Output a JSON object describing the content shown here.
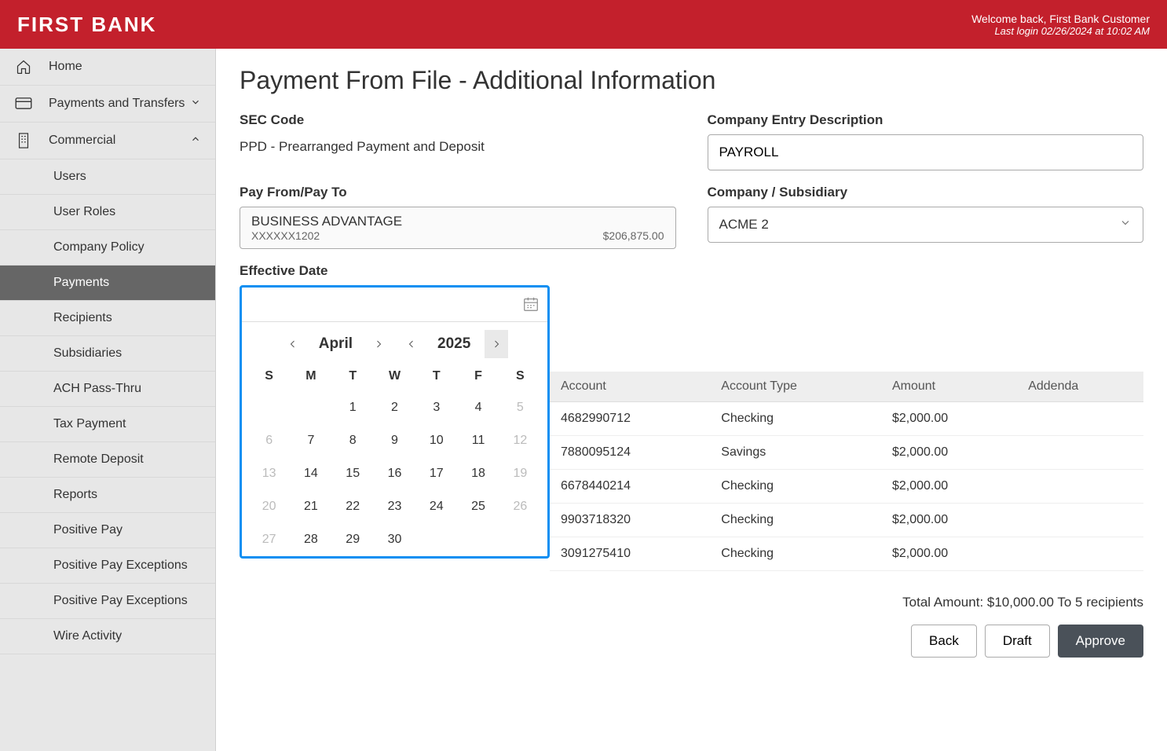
{
  "header": {
    "logo": "FIRST BANK",
    "welcome": "Welcome back, First Bank Customer",
    "last_login": "Last login 02/26/2024 at 10:02 AM"
  },
  "sidebar": {
    "home": "Home",
    "payments_transfers": "Payments and Transfers",
    "commercial": "Commercial",
    "items": [
      "Users",
      "User Roles",
      "Company Policy",
      "Payments",
      "Recipients",
      "Subsidiaries",
      "ACH Pass-Thru",
      "Tax Payment",
      "Remote Deposit",
      "Reports",
      "Positive Pay",
      "Positive Pay Exceptions",
      "Positive Pay Exceptions",
      "Wire Activity"
    ],
    "active_index": 3
  },
  "page": {
    "title": "Payment From File - Additional Information",
    "sec_code_label": "SEC Code",
    "sec_code_value": "PPD - Prearranged Payment and Deposit",
    "company_entry_label": "Company Entry Description",
    "company_entry_value": "PAYROLL",
    "pay_from_label": "Pay From/Pay To",
    "pay_from_name": "BUSINESS ADVANTAGE",
    "pay_from_masked": "XXXXXX1202",
    "pay_from_balance": "$206,875.00",
    "company_sub_label": "Company / Subsidiary",
    "company_sub_value": "ACME 2",
    "effective_date_label": "Effective Date"
  },
  "calendar": {
    "month": "April",
    "year": "2025",
    "dow": [
      "S",
      "M",
      "T",
      "W",
      "T",
      "F",
      "S"
    ],
    "rows": [
      [
        {
          "d": "",
          "m": true
        },
        {
          "d": "",
          "m": true
        },
        {
          "d": "1",
          "m": false
        },
        {
          "d": "2",
          "m": false
        },
        {
          "d": "3",
          "m": false
        },
        {
          "d": "4",
          "m": false
        },
        {
          "d": "5",
          "m": true
        }
      ],
      [
        {
          "d": "6",
          "m": true
        },
        {
          "d": "7",
          "m": false
        },
        {
          "d": "8",
          "m": false
        },
        {
          "d": "9",
          "m": false
        },
        {
          "d": "10",
          "m": false
        },
        {
          "d": "11",
          "m": false
        },
        {
          "d": "12",
          "m": true
        }
      ],
      [
        {
          "d": "13",
          "m": true
        },
        {
          "d": "14",
          "m": false
        },
        {
          "d": "15",
          "m": false
        },
        {
          "d": "16",
          "m": false
        },
        {
          "d": "17",
          "m": false
        },
        {
          "d": "18",
          "m": false
        },
        {
          "d": "19",
          "m": true
        }
      ],
      [
        {
          "d": "20",
          "m": true
        },
        {
          "d": "21",
          "m": false
        },
        {
          "d": "22",
          "m": false
        },
        {
          "d": "23",
          "m": false
        },
        {
          "d": "24",
          "m": false
        },
        {
          "d": "25",
          "m": false
        },
        {
          "d": "26",
          "m": true
        }
      ],
      [
        {
          "d": "27",
          "m": true
        },
        {
          "d": "28",
          "m": false
        },
        {
          "d": "29",
          "m": false
        },
        {
          "d": "30",
          "m": false
        },
        {
          "d": "",
          "m": true
        },
        {
          "d": "",
          "m": true
        },
        {
          "d": "",
          "m": true
        }
      ]
    ]
  },
  "table": {
    "columns": [
      "Account",
      "Account Type",
      "Amount",
      "Addenda"
    ],
    "rows": [
      {
        "account": "4682990712",
        "type": "Checking",
        "amount": "$2,000.00",
        "addenda": ""
      },
      {
        "account": "7880095124",
        "type": "Savings",
        "amount": "$2,000.00",
        "addenda": ""
      },
      {
        "account": "6678440214",
        "type": "Checking",
        "amount": "$2,000.00",
        "addenda": ""
      },
      {
        "account": "9903718320",
        "type": "Checking",
        "amount": "$2,000.00",
        "addenda": ""
      },
      {
        "account": "3091275410",
        "type": "Checking",
        "amount": "$2,000.00",
        "addenda": ""
      }
    ]
  },
  "footer": {
    "total": "Total Amount: $10,000.00 To 5 recipients",
    "back": "Back",
    "draft": "Draft",
    "approve": "Approve"
  }
}
